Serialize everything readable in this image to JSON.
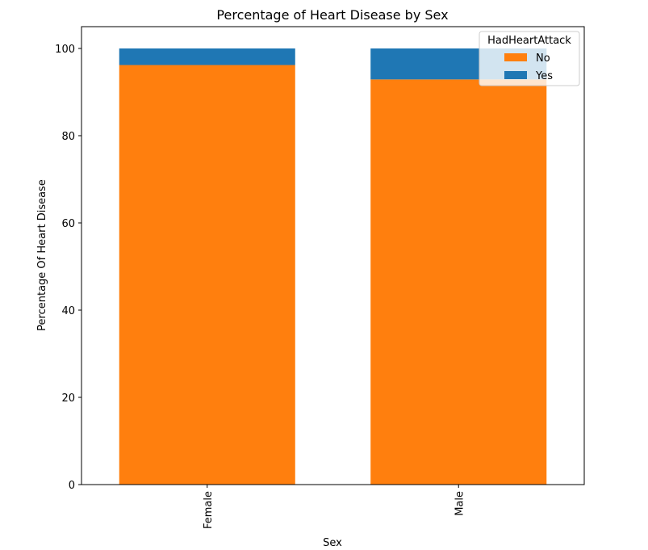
{
  "chart_data": {
    "type": "bar",
    "stacked": true,
    "title": "Percentage of Heart Disease by Sex",
    "xlabel": "Sex",
    "ylabel": "Percentage Of Heart Disease",
    "categories": [
      "Female",
      "Male"
    ],
    "series": [
      {
        "name": "No",
        "color": "#ff7f0e",
        "values": [
          96.2,
          92.9
        ]
      },
      {
        "name": "Yes",
        "color": "#1f77b4",
        "values": [
          3.8,
          7.1
        ]
      }
    ],
    "ylim": [
      0,
      105
    ],
    "yticks": [
      0,
      20,
      40,
      60,
      80,
      100
    ],
    "x_tick_rotation": "vertical",
    "legend": {
      "title": "HadHeartAttack",
      "position": "upper right"
    },
    "grid": false
  }
}
